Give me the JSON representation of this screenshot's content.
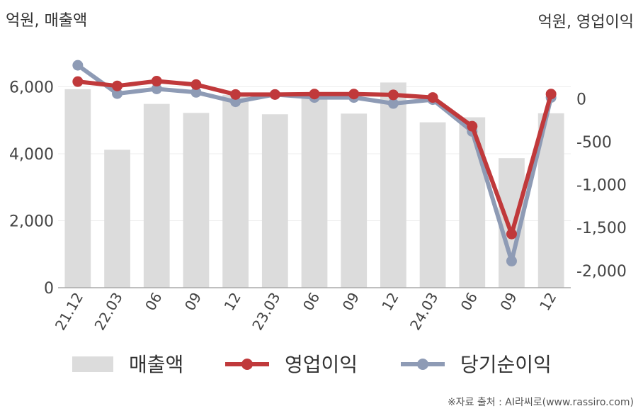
{
  "chart_data": {
    "type": "bar+line",
    "left_unit": "억원, 매출액",
    "right_unit": "억원, 영업이익",
    "categories": [
      "21.12",
      "22.03",
      "06",
      "09",
      "12",
      "23.03",
      "06",
      "09",
      "12",
      "24.03",
      "06",
      "09",
      "12"
    ],
    "series": [
      {
        "name": "매출액",
        "type": "bar",
        "axis": "left",
        "color": "#dcdcdc",
        "values": [
          5930,
          4120,
          5490,
          5220,
          5760,
          5180,
          5690,
          5200,
          6130,
          4940,
          5090,
          3870,
          5210
        ]
      },
      {
        "name": "영업이익",
        "type": "line",
        "axis": "right",
        "color": "#c0393b",
        "values": [
          200,
          150,
          205,
          165,
          50,
          50,
          55,
          55,
          45,
          15,
          -320,
          -1575,
          55
        ]
      },
      {
        "name": "당기순이익",
        "type": "line",
        "axis": "right",
        "color": "#8e9bb5",
        "values": [
          390,
          60,
          115,
          75,
          -35,
          50,
          15,
          15,
          -55,
          -10,
          -380,
          -1890,
          15
        ]
      }
    ],
    "left_axis": {
      "ticks": [
        "0",
        "2,000",
        "4,000",
        "6,000"
      ],
      "tick_values": [
        0,
        2000,
        4000,
        6000
      ],
      "range": [
        0,
        6900
      ]
    },
    "right_axis": {
      "ticks": [
        "0",
        "-500",
        "-1,000",
        "-1,500",
        "-2,000"
      ],
      "tick_values": [
        0,
        -500,
        -1000,
        -1500,
        -2000
      ],
      "range": [
        -2200,
        490
      ]
    },
    "grid": true,
    "legend_position": "bottom"
  },
  "credit": "※자료 출처 : AI라씨로(www.rassiro.com)"
}
